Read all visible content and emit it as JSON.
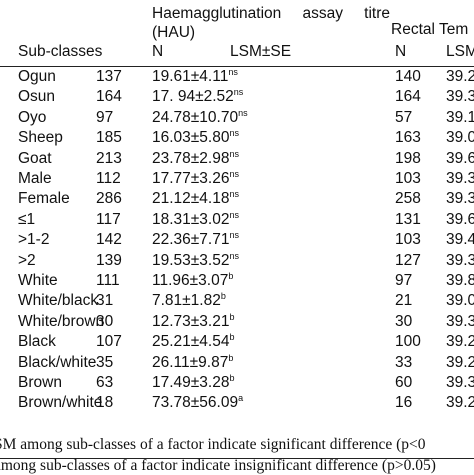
{
  "header": {
    "group1_line1_word1": "Haemagglutination",
    "group1_line1_word2": "assay",
    "group1_line1_word3": "titre",
    "group1_line2": "(HAU)",
    "group2": "Rectal Tem",
    "col_subclass": "Sub-classes",
    "col_n1": "N",
    "col_lsm1": "LSM±SE",
    "col_n2": "N",
    "col_lsm2": "LSM"
  },
  "rows": [
    {
      "sub": "Ogun",
      "n1": "137",
      "lsm": "19.61±4.11",
      "sup": "ns",
      "n2": "140",
      "lsm2": "39.2"
    },
    {
      "sub": "Osun",
      "n1": "164",
      "lsm": "17. 94±2.52",
      "sup": "ns",
      "n2": "164",
      "lsm2": "39.3"
    },
    {
      "sub": "Oyo",
      "n1": "97",
      "lsm": "24.78±10.70",
      "sup": "ns",
      "n2": "57",
      "lsm2": "39.1"
    },
    {
      "sub": "Sheep",
      "n1": "185",
      "lsm": "16.03±5.80",
      "sup": "ns",
      "n2": "163",
      "lsm2": "39.0"
    },
    {
      "sub": "Goat",
      "n1": "213",
      "lsm": "23.78±2.98",
      "sup": "ns",
      "n2": "198",
      "lsm2": "39.6"
    },
    {
      "sub": "Male",
      "n1": "112",
      "lsm": "17.77±3.26",
      "sup": "ns",
      "n2": "103",
      "lsm2": "39.3"
    },
    {
      "sub": "Female",
      "n1": "286",
      "lsm": "21.12±4.18",
      "sup": "ns",
      "n2": "258",
      "lsm2": "39.3"
    },
    {
      "sub": "≤1",
      "n1": "117",
      "lsm": "18.31±3.02",
      "sup": "ns",
      "n2": "131",
      "lsm2": "39.6"
    },
    {
      "sub": ">1-2",
      "n1": "142",
      "lsm": "22.36±7.71",
      "sup": "ns",
      "n2": "103",
      "lsm2": "39.4"
    },
    {
      "sub": ">2",
      "n1": "139",
      "lsm": "19.53±3.52",
      "sup": "ns",
      "n2": "127",
      "lsm2": "39.3"
    },
    {
      "sub": "White",
      "n1": "111",
      "lsm": "11.96±3.07",
      "sup": "b",
      "n2": "97",
      "lsm2": "39.8"
    },
    {
      "sub": "White/black",
      "n1": "31",
      "lsm": "7.81±1.82",
      "sup": "b",
      "n2": "21",
      "lsm2": "39.0"
    },
    {
      "sub": "White/brown",
      "n1": "30",
      "lsm": "12.73±3.21",
      "sup": "b",
      "n2": "30",
      "lsm2": "39.3"
    },
    {
      "sub": "Black",
      "n1": "107",
      "lsm": "25.21±4.54",
      "sup": "b",
      "n2": "100",
      "lsm2": "39.2"
    },
    {
      "sub": "Black/white",
      "n1": "35",
      "lsm": "26.11±9.87",
      "sup": "b",
      "n2": "33",
      "lsm2": "39.2"
    },
    {
      "sub": "Brown",
      "n1": "63",
      "lsm": "17.49±3.28",
      "sup": "b",
      "n2": "60",
      "lsm2": "39.3"
    },
    {
      "sub": "Brown/white",
      "n1": "18",
      "lsm": "73.78±56.09",
      "sup": "a",
      "n2": "16",
      "lsm2": "39.2"
    }
  ],
  "footnotes": [
    "SM among sub-classes of a factor indicate significant difference (p<0",
    "among sub-classes of a factor indicate insignificant difference (p>0.05)"
  ]
}
